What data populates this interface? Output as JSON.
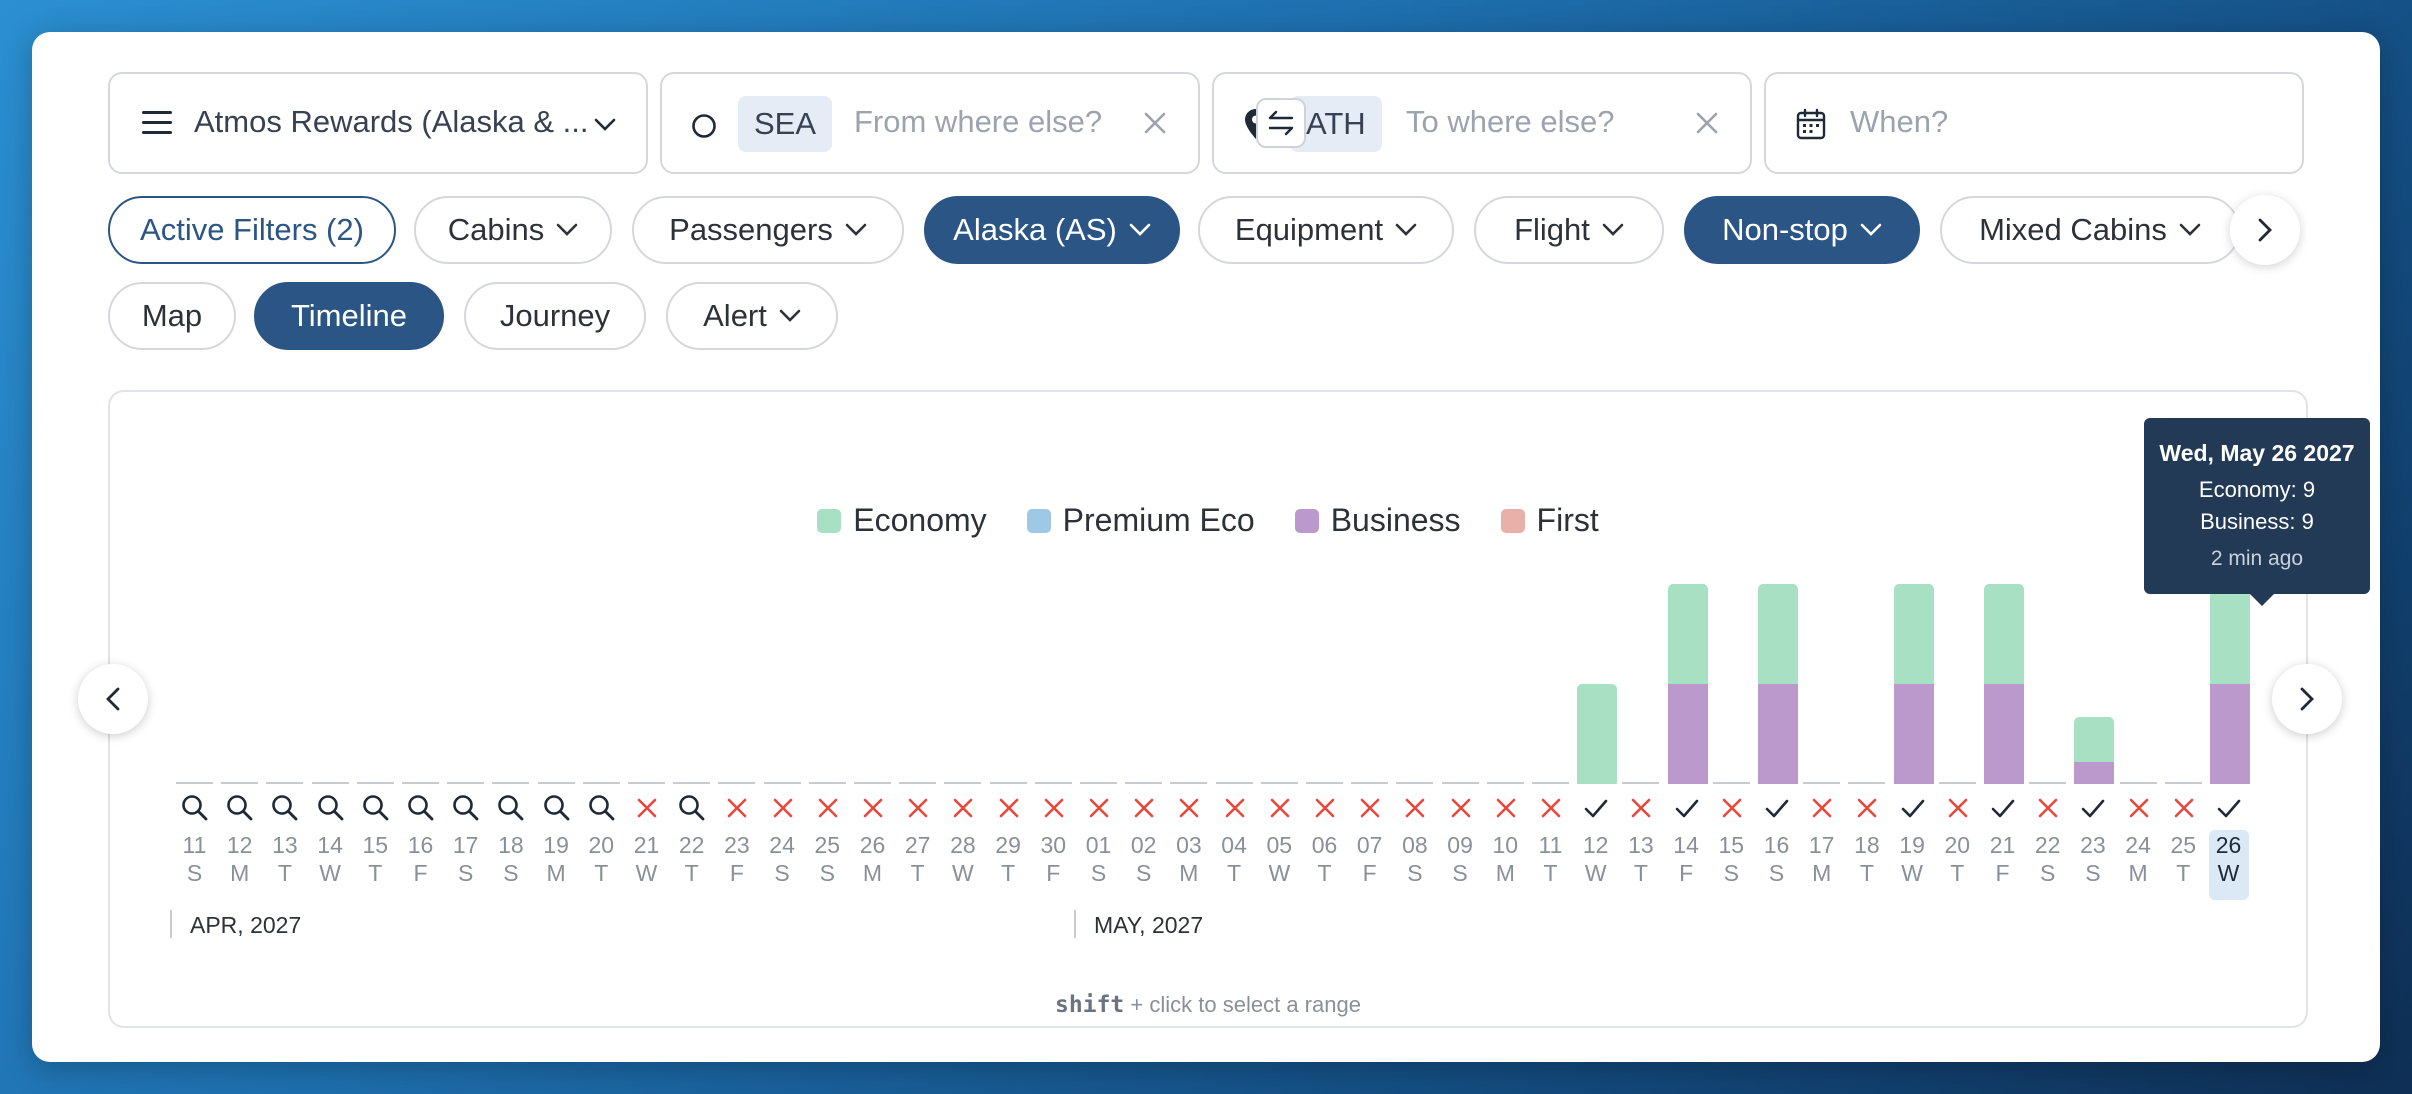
{
  "search": {
    "program": "Atmos Rewards (Alaska & ...",
    "origin_code": "SEA",
    "origin_placeholder": "From where else?",
    "dest_code": "ATH",
    "dest_placeholder": "To where else?",
    "date_placeholder": "When?",
    "icons": [
      "menu-icon",
      "chevron-down-icon",
      "circle-origin-icon",
      "clear-icon",
      "swap-icon",
      "map-pin-icon",
      "clear-icon",
      "calendar-icon"
    ]
  },
  "filters": [
    {
      "label": "Active Filters (2)",
      "style": "outline-blue",
      "chevron": false
    },
    {
      "label": "Cabins",
      "style": "plain",
      "chevron": true
    },
    {
      "label": "Passengers",
      "style": "plain",
      "chevron": true
    },
    {
      "label": "Alaska (AS)",
      "style": "dark",
      "chevron": true
    },
    {
      "label": "Equipment",
      "style": "plain",
      "chevron": true
    },
    {
      "label": "Flight",
      "style": "plain",
      "chevron": true
    },
    {
      "label": "Non-stop",
      "style": "dark",
      "chevron": true
    },
    {
      "label": "Mixed Cabins",
      "style": "plain",
      "chevron": true
    }
  ],
  "views": [
    {
      "label": "Map",
      "style": "plain"
    },
    {
      "label": "Timeline",
      "style": "dark"
    },
    {
      "label": "Journey",
      "style": "plain"
    },
    {
      "label": "Alert",
      "style": "plain",
      "chevron": true
    }
  ],
  "legend": [
    {
      "name": "Economy",
      "color": "#a8e0c3"
    },
    {
      "name": "Premium Eco",
      "color": "#9fc8e6"
    },
    {
      "name": "Business",
      "color": "#bb99cc"
    },
    {
      "name": "First",
      "color": "#e8b0a8"
    }
  ],
  "chart_data": {
    "type": "bar",
    "x": [
      "11",
      "12",
      "13",
      "14",
      "15",
      "16",
      "17",
      "18",
      "19",
      "20",
      "21",
      "22",
      "23",
      "24",
      "25",
      "26",
      "27",
      "28",
      "29",
      "30",
      "01",
      "02",
      "03",
      "04",
      "05",
      "06",
      "07",
      "08",
      "09",
      "10",
      "11",
      "12",
      "13",
      "14",
      "15",
      "16",
      "17",
      "18",
      "19",
      "20",
      "21",
      "22",
      "23",
      "24",
      "25",
      "26"
    ],
    "weekdays": [
      "S",
      "M",
      "T",
      "W",
      "T",
      "F",
      "S",
      "S",
      "M",
      "T",
      "W",
      "T",
      "F",
      "S",
      "S",
      "M",
      "T",
      "W",
      "T",
      "F",
      "S",
      "S",
      "M",
      "T",
      "W",
      "T",
      "F",
      "S",
      "S",
      "M",
      "T",
      "W",
      "T",
      "F",
      "S",
      "S",
      "M",
      "T",
      "W",
      "T",
      "F",
      "S",
      "S",
      "M",
      "T",
      "W"
    ],
    "status": [
      "search",
      "search",
      "search",
      "search",
      "search",
      "search",
      "search",
      "search",
      "search",
      "search",
      "none",
      "search",
      "none",
      "none",
      "none",
      "none",
      "none",
      "none",
      "none",
      "none",
      "none",
      "none",
      "none",
      "none",
      "none",
      "none",
      "none",
      "none",
      "none",
      "none",
      "none",
      "available",
      "none",
      "available",
      "none",
      "available",
      "none",
      "none",
      "available",
      "none",
      "available",
      "none",
      "available",
      "none",
      "none",
      "available"
    ],
    "series": [
      {
        "name": "Economy",
        "values": [
          0,
          0,
          0,
          0,
          0,
          0,
          0,
          0,
          0,
          0,
          0,
          0,
          0,
          0,
          0,
          0,
          0,
          0,
          0,
          0,
          0,
          0,
          0,
          0,
          0,
          0,
          0,
          0,
          0,
          0,
          0,
          9,
          0,
          9,
          0,
          9,
          0,
          0,
          9,
          0,
          9,
          0,
          4,
          0,
          0,
          9
        ]
      },
      {
        "name": "Business",
        "values": [
          0,
          0,
          0,
          0,
          0,
          0,
          0,
          0,
          0,
          0,
          0,
          0,
          0,
          0,
          0,
          0,
          0,
          0,
          0,
          0,
          0,
          0,
          0,
          0,
          0,
          0,
          0,
          0,
          0,
          0,
          0,
          0,
          0,
          9,
          0,
          9,
          0,
          0,
          9,
          0,
          9,
          0,
          2,
          0,
          0,
          9
        ]
      }
    ],
    "months": [
      {
        "label": "APR, 2027",
        "start_index": 0
      },
      {
        "label": "MAY, 2027",
        "start_index": 20
      }
    ],
    "selected_index": 45
  },
  "hint": {
    "key": "shift",
    "text": "+ click to select a range"
  },
  "tooltip": {
    "date": "Wed, May 26 2027",
    "economy": "Economy: 9",
    "business": "Business: 9",
    "ago": "2 min ago"
  }
}
